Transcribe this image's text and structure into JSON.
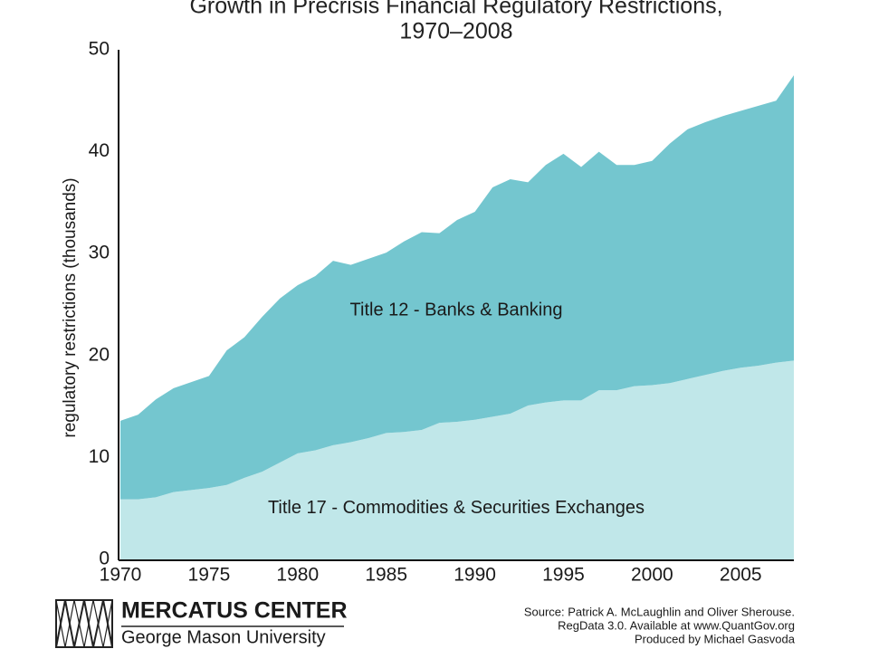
{
  "chart_data": {
    "type": "stacked-area",
    "title": [
      "Growth in Precrisis Financial Regulatory Restrictions,",
      "1970–2008"
    ],
    "ylabel": "regulatory restrictions (thousands)",
    "x": [
      1970,
      1971,
      1972,
      1973,
      1974,
      1975,
      1976,
      1977,
      1978,
      1979,
      1980,
      1981,
      1982,
      1983,
      1984,
      1985,
      1986,
      1987,
      1988,
      1989,
      1990,
      1991,
      1992,
      1993,
      1994,
      1995,
      1996,
      1997,
      1998,
      1999,
      2000,
      2001,
      2002,
      2003,
      2004,
      2005,
      2006,
      2007,
      2008
    ],
    "series": [
      {
        "name": "Title 17 - Commodities & Securities Exchanges",
        "color": "#c0e7e9",
        "values": [
          5.9,
          5.9,
          6.1,
          6.6,
          6.8,
          7.0,
          7.3,
          8.0,
          8.6,
          9.5,
          10.4,
          10.7,
          11.2,
          11.5,
          11.9,
          12.4,
          12.5,
          12.7,
          13.4,
          13.5,
          13.7,
          14.0,
          14.3,
          15.1,
          15.4,
          15.6,
          15.6,
          16.6,
          16.6,
          17.0,
          17.1,
          17.3,
          17.7,
          18.1,
          18.5,
          18.8,
          19.0,
          19.3,
          19.5
        ]
      },
      {
        "name": "Title 12 - Banks & Banking",
        "color": "#74c6cf",
        "values": [
          7.7,
          8.3,
          9.6,
          10.2,
          10.6,
          11.0,
          13.2,
          13.8,
          15.2,
          16.1,
          16.5,
          17.1,
          18.1,
          17.4,
          17.6,
          17.7,
          18.7,
          19.4,
          18.6,
          19.8,
          20.4,
          22.5,
          23.0,
          21.9,
          23.3,
          24.2,
          22.9,
          23.4,
          22.1,
          21.7,
          22.0,
          23.5,
          24.5,
          24.8,
          25.0,
          25.2,
          25.5,
          25.7,
          28.0
        ]
      }
    ],
    "xlim": [
      1970,
      2008
    ],
    "xticks": [
      1970,
      1975,
      1980,
      1985,
      1990,
      1995,
      2000,
      2005
    ],
    "ylim": [
      0,
      50
    ],
    "yticks": [
      0,
      10,
      20,
      30,
      40,
      50
    ],
    "grid": false
  },
  "footer": {
    "logo_name": "MERCATUS CENTER",
    "logo_subtitle": "George Mason University",
    "source": [
      "Source: Patrick A. McLaughlin and Oliver Sherouse.",
      "RegData 3.0. Available at www.QuantGov.org",
      "Produced by Michael Gasvoda"
    ]
  }
}
